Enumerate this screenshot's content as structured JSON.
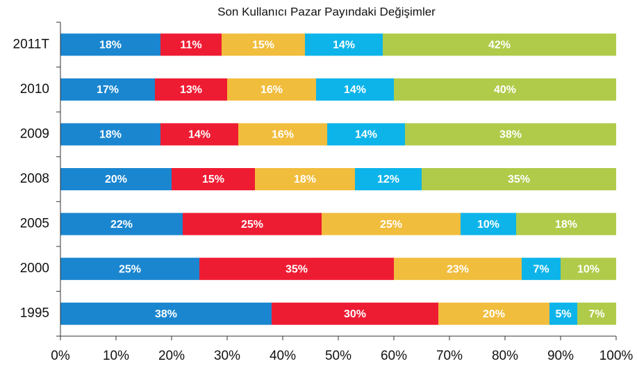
{
  "chart_data": {
    "type": "stacked-barh",
    "title": "Son Kullanıcı Pazar Payındaki Değişimler",
    "categories": [
      "2011T",
      "2010",
      "2009",
      "2008",
      "2005",
      "2000",
      "1995"
    ],
    "series": [
      {
        "color": "#1a86d0",
        "values": [
          18,
          17,
          18,
          20,
          22,
          25,
          38
        ],
        "value_labels": [
          "18%",
          "17%",
          "18%",
          "20%",
          "22%",
          "25%",
          "38%"
        ]
      },
      {
        "color": "#ee1c33",
        "values": [
          11,
          13,
          14,
          15,
          25,
          35,
          30
        ],
        "value_labels": [
          "11%",
          "13%",
          "14%",
          "15%",
          "25%",
          "35%",
          "30%"
        ]
      },
      {
        "color": "#f1bd3d",
        "values": [
          15,
          16,
          16,
          18,
          25,
          23,
          20
        ],
        "value_labels": [
          "15%",
          "16%",
          "16%",
          "18%",
          "25%",
          "23%",
          "20%"
        ]
      },
      {
        "color": "#0cb4ea",
        "values": [
          14,
          14,
          14,
          12,
          10,
          7,
          5
        ],
        "value_labels": [
          "14%",
          "14%",
          "14%",
          "12%",
          "10%",
          "7%",
          "5%"
        ]
      },
      {
        "color": "#b0cb4a",
        "values": [
          42,
          40,
          38,
          35,
          18,
          10,
          7
        ],
        "value_labels": [
          "42%",
          "40%",
          "38%",
          "35%",
          "18%",
          "10%",
          "7%"
        ]
      }
    ],
    "xlim": [
      0,
      100
    ],
    "xticks": [
      {
        "value": 0,
        "label": "0%"
      },
      {
        "value": 10,
        "label": "10%"
      },
      {
        "value": 20,
        "label": "20%"
      },
      {
        "value": 30,
        "label": "30%"
      },
      {
        "value": 40,
        "label": "40%"
      },
      {
        "value": 50,
        "label": "50%"
      },
      {
        "value": 60,
        "label": "60%"
      },
      {
        "value": 70,
        "label": "70%"
      },
      {
        "value": 80,
        "label": "80%"
      },
      {
        "value": 90,
        "label": "90%"
      },
      {
        "value": 100,
        "label": "100%"
      }
    ]
  }
}
